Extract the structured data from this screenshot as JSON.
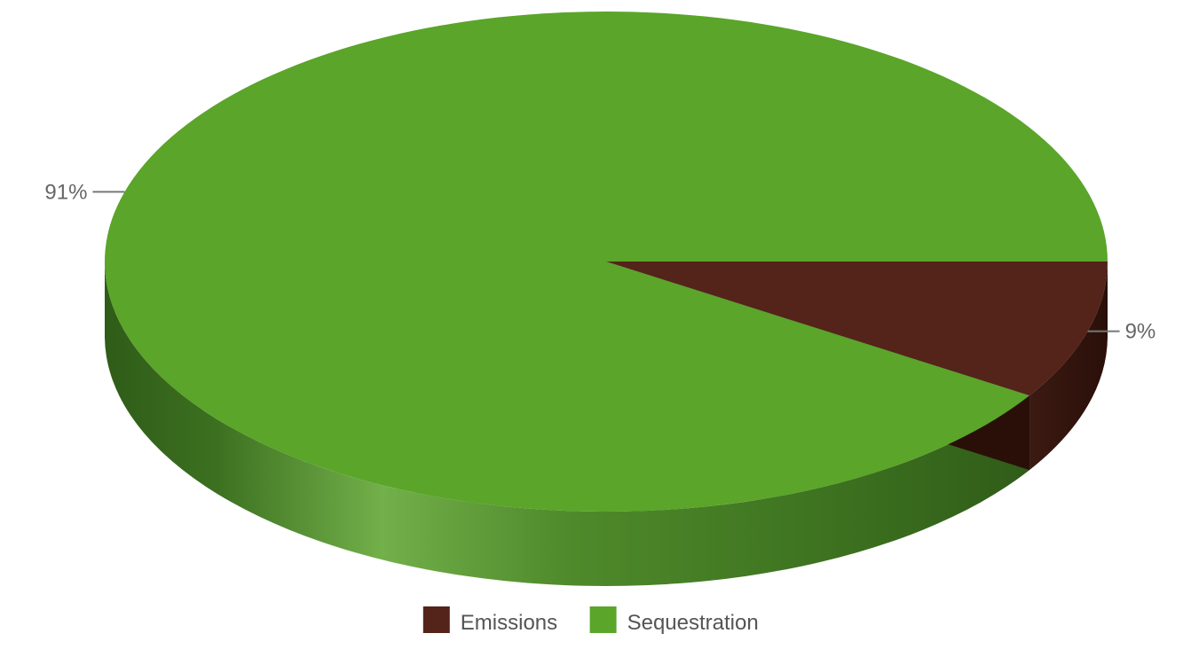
{
  "chart_data": {
    "type": "pie",
    "categories": [
      "Emissions",
      "Sequestration"
    ],
    "values": [
      9,
      91
    ],
    "labels": [
      "9%",
      "91%"
    ],
    "colors": {
      "Emissions": "#54231a",
      "Sequestration": "#5aa52a"
    },
    "style": "3d",
    "legend_position": "bottom"
  }
}
